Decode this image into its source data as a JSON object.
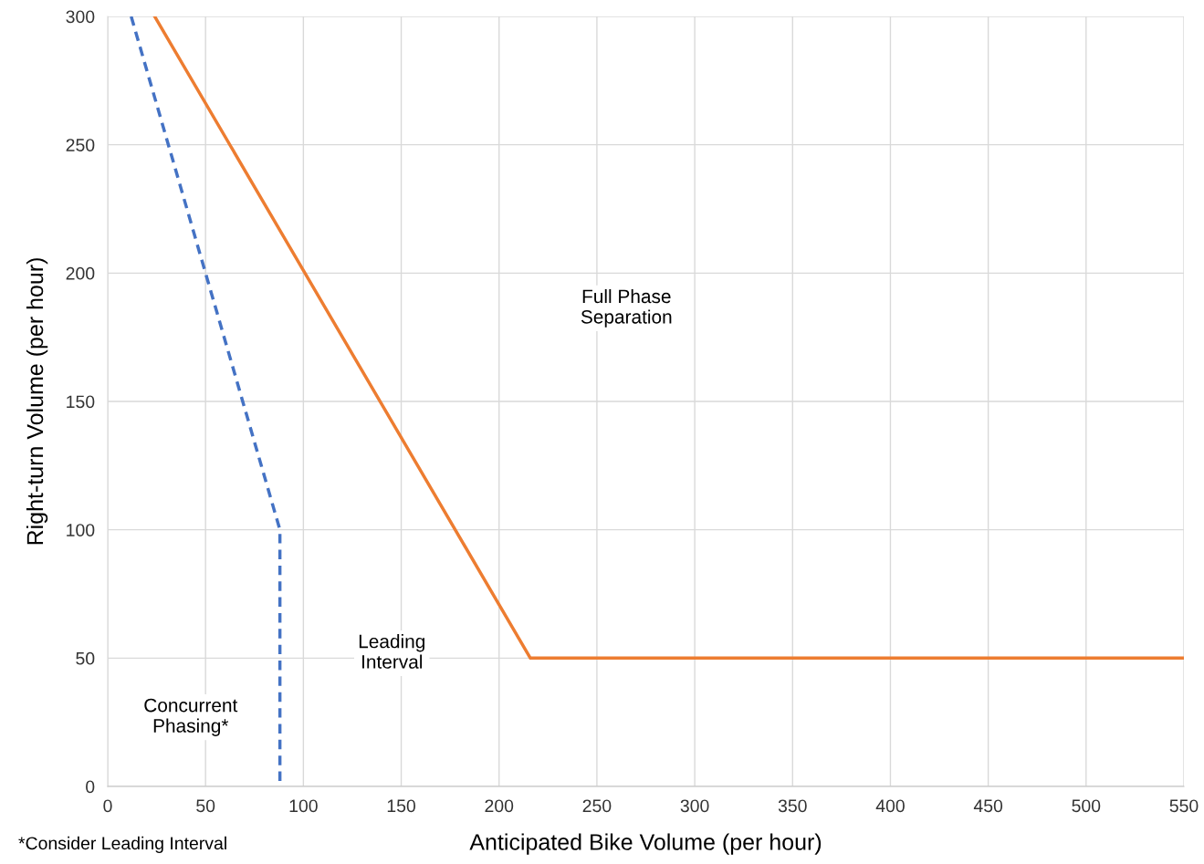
{
  "chart_data": {
    "type": "line",
    "xlabel": "Anticipated Bike Volume (per hour)",
    "ylabel": "Right-turn Volume (per hour)",
    "series": [
      {
        "color": "#4472c4",
        "line_style": "dashed",
        "x": [
          12,
          88,
          88
        ],
        "values": [
          300,
          100,
          0
        ]
      },
      {
        "color": "#ed7d31",
        "line_style": "solid",
        "x": [
          24,
          216,
          550
        ],
        "values": [
          300,
          50,
          50
        ]
      }
    ],
    "xlim": [
      0,
      550
    ],
    "xticks": [
      0,
      50,
      100,
      150,
      200,
      250,
      300,
      350,
      400,
      450,
      500,
      550
    ],
    "ylim": [
      0,
      300
    ],
    "yticks": [
      0,
      50,
      100,
      150,
      200,
      250,
      300
    ],
    "grid": true,
    "marker": "none",
    "annotations": [
      "Full Phase\nSeparation",
      "Leading\nInterval",
      "Concurrent\nPhasing*",
      "*Consider Leading Interval"
    ]
  }
}
